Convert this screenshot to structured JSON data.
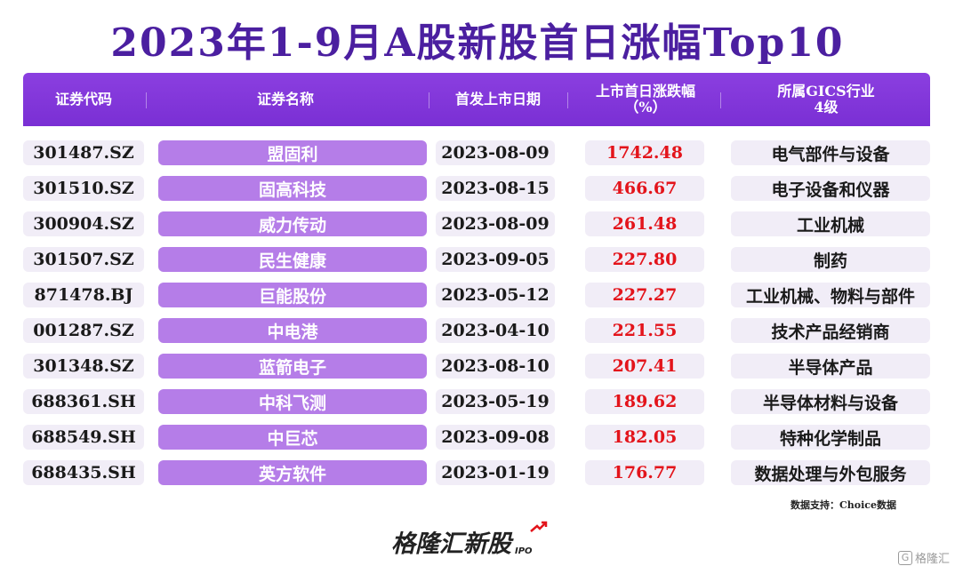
{
  "title": "2023年1-9月A股新股首日涨幅Top10",
  "header": {
    "code": "证券代码",
    "name": "证券名称",
    "date": "首发上市日期",
    "pct_line1": "上市首日涨跌幅",
    "pct_line2": "（%）",
    "industry_line1": "所属GICS行业",
    "industry_line2": "4级"
  },
  "rows": [
    {
      "code": "301487.SZ",
      "name": "盟固利",
      "date": "2023-08-09",
      "pct": "1742.48",
      "industry": "电气部件与设备"
    },
    {
      "code": "301510.SZ",
      "name": "固高科技",
      "date": "2023-08-15",
      "pct": "466.67",
      "industry": "电子设备和仪器"
    },
    {
      "code": "300904.SZ",
      "name": "威力传动",
      "date": "2023-08-09",
      "pct": "261.48",
      "industry": "工业机械"
    },
    {
      "code": "301507.SZ",
      "name": "民生健康",
      "date": "2023-09-05",
      "pct": "227.80",
      "industry": "制药"
    },
    {
      "code": "871478.BJ",
      "name": "巨能股份",
      "date": "2023-05-12",
      "pct": "227.27",
      "industry": "工业机械、物料与部件"
    },
    {
      "code": "001287.SZ",
      "name": "中电港",
      "date": "2023-04-10",
      "pct": "221.55",
      "industry": "技术产品经销商"
    },
    {
      "code": "301348.SZ",
      "name": "蓝箭电子",
      "date": "2023-08-10",
      "pct": "207.41",
      "industry": "半导体产品"
    },
    {
      "code": "688361.SH",
      "name": "中科飞测",
      "date": "2023-05-19",
      "pct": "189.62",
      "industry": "半导体材料与设备"
    },
    {
      "code": "688549.SH",
      "name": "中巨芯",
      "date": "2023-09-08",
      "pct": "182.05",
      "industry": "特种化学制品"
    },
    {
      "code": "688435.SH",
      "name": "英方软件",
      "date": "2023-01-19",
      "pct": "176.77",
      "industry": "数据处理与外包服务"
    }
  ],
  "source": "数据支持：Choice数据",
  "brand": {
    "name": "格隆汇新股",
    "sub": "IPO"
  },
  "watermark": "格隆汇",
  "colors": {
    "title": "#4b1fa0",
    "header": "#8b3fe0",
    "name_cell": "#b57de8",
    "cell_bg": "#f1edf7",
    "pct": "#e3141b"
  }
}
